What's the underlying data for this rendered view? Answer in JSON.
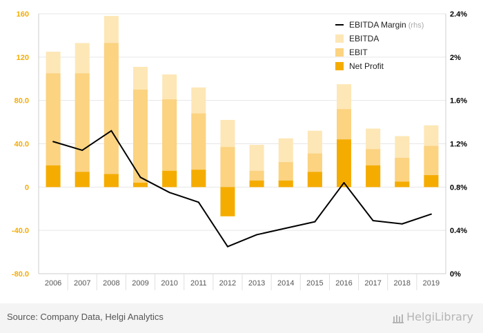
{
  "chart_data": {
    "type": "bar",
    "categories": [
      "2006",
      "2007",
      "2008",
      "2009",
      "2010",
      "2011",
      "2012",
      "2013",
      "2014",
      "2015",
      "2016",
      "2017",
      "2018",
      "2019"
    ],
    "series": [
      {
        "name": "EBITDA",
        "kind": "bar",
        "color": "#fde7b6",
        "values": [
          125,
          133,
          158,
          111,
          104,
          92,
          62,
          39,
          45,
          52,
          95,
          54,
          47,
          57
        ]
      },
      {
        "name": "EBIT",
        "kind": "bar",
        "color": "#fbd381",
        "values": [
          105,
          105,
          133,
          90,
          81,
          68,
          37,
          15,
          23,
          31,
          72,
          35,
          27,
          38
        ]
      },
      {
        "name": "Net Profit",
        "kind": "bar",
        "color": "#f5ac00",
        "values": [
          20,
          14,
          12,
          4,
          15,
          16,
          -27,
          6,
          6,
          14,
          44,
          20,
          5,
          11
        ]
      },
      {
        "name": "EBITDA Margin",
        "kind": "line",
        "axis": "right",
        "color": "#000000",
        "values": [
          1.22,
          1.14,
          1.32,
          0.89,
          0.75,
          0.66,
          0.25,
          0.36,
          0.42,
          0.48,
          0.84,
          0.49,
          0.46,
          0.55
        ]
      }
    ],
    "yAxisLeft": {
      "min": -80,
      "max": 160,
      "ticks": [
        "-80.0",
        "-40.0",
        "0",
        "40.0",
        "80.0",
        "120",
        "160"
      ],
      "tickValues": [
        -80,
        -40,
        0,
        40,
        80,
        120,
        160
      ]
    },
    "yAxisRight": {
      "min": 0,
      "max": 2.4,
      "ticks": [
        "0%",
        "0.4%",
        "0.8%",
        "1.2%",
        "1.6%",
        "2%",
        "2.4%"
      ],
      "tickValues": [
        0,
        0.4,
        0.8,
        1.2,
        1.6,
        2.0,
        2.4
      ]
    },
    "legend": {
      "position": "top-right",
      "items": [
        {
          "label": "EBITDA Margin",
          "suffix": "(rhs)",
          "type": "line",
          "color": "#000000"
        },
        {
          "label": "EBITDA",
          "type": "box",
          "color": "#fde7b6"
        },
        {
          "label": "EBIT",
          "type": "box",
          "color": "#fbd381"
        },
        {
          "label": "Net Profit",
          "type": "box",
          "color": "#f5ac00"
        }
      ]
    },
    "grid": true
  },
  "footer": {
    "source": "Source: Company Data, Helgi Analytics",
    "brand": "HelgiLibrary"
  },
  "colors": {
    "axisText": "#f5ac00",
    "grid": "#e6e6e6",
    "footerBg": "#f4f4f4"
  }
}
